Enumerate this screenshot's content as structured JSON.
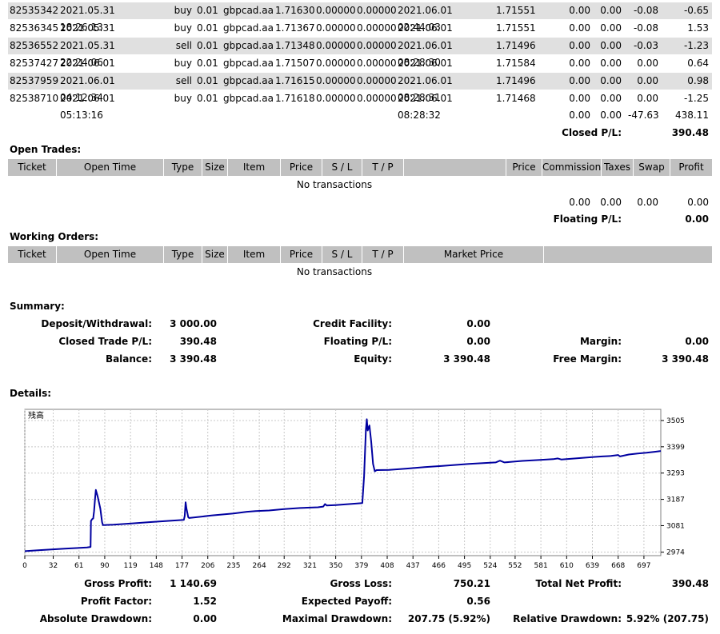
{
  "closed_trades": [
    {
      "ticket": "82535342",
      "open_time": "2021.05.31 18:26:13",
      "type": "buy",
      "size": "0.01",
      "item": "gbpcad.aa",
      "price": "1.71630",
      "sl": "0.00000",
      "tp": "0.00000",
      "close_time": "2021.06.01 02:44:03",
      "close_price": "1.71551",
      "commission": "0.00",
      "taxes": "0.00",
      "swap": "-0.08",
      "profit": "-0.65"
    },
    {
      "ticket": "82536345",
      "open_time": "2021.05.31 21:48:52",
      "type": "buy",
      "size": "0.01",
      "item": "gbpcad.aa",
      "price": "1.71367",
      "sl": "0.00000",
      "tp": "0.00000",
      "close_time": "2021.06.01 02:44:02",
      "close_price": "1.71551",
      "commission": "0.00",
      "taxes": "0.00",
      "swap": "-0.08",
      "profit": "1.53"
    },
    {
      "ticket": "82536552",
      "open_time": "2021.05.31 22:24:06",
      "type": "sell",
      "size": "0.01",
      "item": "gbpcad.aa",
      "price": "1.71348",
      "sl": "0.00000",
      "tp": "0.00000",
      "close_time": "2021.06.01 08:28:30",
      "close_price": "1.71496",
      "commission": "0.00",
      "taxes": "0.00",
      "swap": "-0.03",
      "profit": "-1.23"
    },
    {
      "ticket": "82537427",
      "open_time": "2021.06.01 03:03:38",
      "type": "buy",
      "size": "0.01",
      "item": "gbpcad.aa",
      "price": "1.71507",
      "sl": "0.00000",
      "tp": "0.00000",
      "close_time": "2021.06.01 04:12:33",
      "close_price": "1.71584",
      "commission": "0.00",
      "taxes": "0.00",
      "swap": "0.00",
      "profit": "0.64"
    },
    {
      "ticket": "82537959",
      "open_time": "2021.06.01 04:12:34",
      "type": "sell",
      "size": "0.01",
      "item": "gbpcad.aa",
      "price": "1.71615",
      "sl": "0.00000",
      "tp": "0.00000",
      "close_time": "2021.06.01 08:28:31",
      "close_price": "1.71496",
      "commission": "0.00",
      "taxes": "0.00",
      "swap": "0.00",
      "profit": "0.98"
    },
    {
      "ticket": "82538710",
      "open_time": "2021.06.01 05:13:16",
      "type": "buy",
      "size": "0.01",
      "item": "gbpcad.aa",
      "price": "1.71618",
      "sl": "0.00000",
      "tp": "0.00000",
      "close_time": "2021.06.01 08:28:32",
      "close_price": "1.71468",
      "commission": "0.00",
      "taxes": "0.00",
      "swap": "0.00",
      "profit": "-1.25"
    }
  ],
  "closed_totals": {
    "commission": "0.00",
    "taxes": "0.00",
    "swap": "-47.63",
    "profit": "438.11"
  },
  "closed_pl": {
    "label": "Closed P/L:",
    "value": "390.48"
  },
  "open_trades": {
    "title": "Open Trades:",
    "headers": [
      "Ticket",
      "Open Time",
      "Type",
      "Size",
      "Item",
      "Price",
      "S / L",
      "T / P",
      "",
      "Price",
      "Commission",
      "Taxes",
      "Swap",
      "Profit"
    ],
    "empty": "No transactions",
    "totals": {
      "commission": "0.00",
      "taxes": "0.00",
      "swap": "0.00",
      "profit": "0.00"
    },
    "floating_label": "Floating P/L:",
    "floating_value": "0.00"
  },
  "working_orders": {
    "title": "Working Orders:",
    "headers": [
      "Ticket",
      "Open Time",
      "Type",
      "Size",
      "Item",
      "Price",
      "S / L",
      "T / P",
      "Market Price",
      ""
    ],
    "empty": "No transactions"
  },
  "summary": {
    "title": "Summary:",
    "deposit_label": "Deposit/Withdrawal:",
    "deposit_value": "3 000.00",
    "credit_label": "Credit Facility:",
    "credit_value": "0.00",
    "closed_label": "Closed Trade P/L:",
    "closed_value": "390.48",
    "floating_label": "Floating P/L:",
    "floating_value": "0.00",
    "margin_label": "Margin:",
    "margin_value": "0.00",
    "balance_label": "Balance:",
    "balance_value": "3 390.48",
    "equity_label": "Equity:",
    "equity_value": "3 390.48",
    "free_margin_label": "Free Margin:",
    "free_margin_value": "3 390.48"
  },
  "details": {
    "title": "Details:",
    "gross_profit_label": "Gross Profit:",
    "gross_profit_value": "1 140.69",
    "gross_loss_label": "Gross Loss:",
    "gross_loss_value": "750.21",
    "total_net_label": "Total Net Profit:",
    "total_net_value": "390.48",
    "profit_factor_label": "Profit Factor:",
    "profit_factor_value": "1.52",
    "expected_payoff_label": "Expected Payoff:",
    "expected_payoff_value": "0.56",
    "abs_dd_label": "Absolute Drawdown:",
    "abs_dd_value": "0.00",
    "max_dd_label": "Maximal Drawdown:",
    "max_dd_value": "207.75 (5.92%)",
    "rel_dd_label": "Relative Drawdown:",
    "rel_dd_value": "5.92% (207.75)"
  },
  "chart_data": {
    "type": "line",
    "title": "残高",
    "xlim": [
      0,
      716
    ],
    "ylim": [
      2960,
      3550
    ],
    "x_ticks": [
      0,
      32,
      61,
      90,
      119,
      148,
      177,
      206,
      235,
      264,
      292,
      321,
      350,
      379,
      408,
      437,
      466,
      495,
      524,
      552,
      581,
      610,
      639,
      668,
      697
    ],
    "y_ticks": [
      2974,
      3081,
      3187,
      3293,
      3399,
      3505
    ],
    "line_color": "#0000a0",
    "series": [
      {
        "values": [
          [
            0,
            2978
          ],
          [
            15,
            2982
          ],
          [
            30,
            2985
          ],
          [
            45,
            2988
          ],
          [
            60,
            2991
          ],
          [
            70,
            2993
          ],
          [
            74,
            2995
          ],
          [
            74.5,
            3100
          ],
          [
            76,
            3108
          ],
          [
            77,
            3110
          ],
          [
            78,
            3140
          ],
          [
            79,
            3185
          ],
          [
            80,
            3225
          ],
          [
            82,
            3200
          ],
          [
            85,
            3150
          ],
          [
            87,
            3095
          ],
          [
            88,
            3083
          ],
          [
            100,
            3085
          ],
          [
            120,
            3090
          ],
          [
            140,
            3095
          ],
          [
            160,
            3100
          ],
          [
            179,
            3104
          ],
          [
            180,
            3120
          ],
          [
            181,
            3175
          ],
          [
            182,
            3150
          ],
          [
            184,
            3115
          ],
          [
            185,
            3112
          ],
          [
            210,
            3122
          ],
          [
            235,
            3130
          ],
          [
            250,
            3137
          ],
          [
            260,
            3140
          ],
          [
            275,
            3142
          ],
          [
            292,
            3148
          ],
          [
            310,
            3152
          ],
          [
            330,
            3155
          ],
          [
            336,
            3158
          ],
          [
            338,
            3168
          ],
          [
            340,
            3162
          ],
          [
            350,
            3164
          ],
          [
            365,
            3168
          ],
          [
            380,
            3172
          ],
          [
            382,
            3280
          ],
          [
            384,
            3470
          ],
          [
            385,
            3510
          ],
          [
            386,
            3465
          ],
          [
            388,
            3485
          ],
          [
            390,
            3420
          ],
          [
            392,
            3330
          ],
          [
            394,
            3300
          ],
          [
            396,
            3305
          ],
          [
            410,
            3306
          ],
          [
            430,
            3311
          ],
          [
            450,
            3317
          ],
          [
            470,
            3322
          ],
          [
            500,
            3330
          ],
          [
            520,
            3334
          ],
          [
            530,
            3336
          ],
          [
            535,
            3343
          ],
          [
            540,
            3336
          ],
          [
            560,
            3342
          ],
          [
            580,
            3346
          ],
          [
            595,
            3349
          ],
          [
            600,
            3352
          ],
          [
            604,
            3348
          ],
          [
            620,
            3352
          ],
          [
            640,
            3358
          ],
          [
            650,
            3360
          ],
          [
            660,
            3362
          ],
          [
            668,
            3366
          ],
          [
            670,
            3360
          ],
          [
            680,
            3368
          ],
          [
            690,
            3372
          ],
          [
            700,
            3375
          ],
          [
            710,
            3379
          ],
          [
            716,
            3382
          ]
        ]
      }
    ]
  }
}
